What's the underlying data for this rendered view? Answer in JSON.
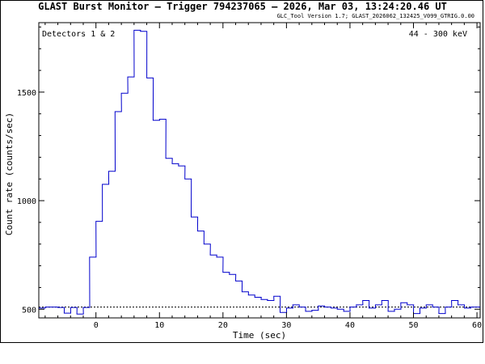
{
  "chart_data": {
    "type": "line",
    "title": "GLAST Burst Monitor  –  Trigger 794237065  –  2026, Mar 03, 13:24:20.46 UT",
    "subtitle": "GLC_Tool Version 1.7; GLAST_2026062_132425_V099_GTRIG.0.00",
    "xlabel": "Time (sec)",
    "ylabel": "Count rate (counts/sec)",
    "annotation_left": "Detectors 1 & 2",
    "annotation_right": "44 - 300 keV",
    "xlim": [
      -9,
      60.5
    ],
    "ylim": [
      460,
      1820
    ],
    "xticks": [
      0,
      10,
      20,
      30,
      40,
      50,
      60
    ],
    "yticks": [
      500,
      1000,
      1500
    ],
    "background_level": 510,
    "step_width": 1.024,
    "series": [
      {
        "color": "#0000cc",
        "bin_starts": [
          -9,
          -8,
          -7,
          -6,
          -5,
          -4,
          -3,
          -2,
          -1,
          0,
          1,
          2,
          3,
          4,
          5,
          6,
          7,
          8,
          9,
          10,
          11,
          12,
          13,
          14,
          15,
          16,
          17,
          18,
          19,
          20,
          21,
          22,
          23,
          24,
          25,
          26,
          27,
          28,
          29,
          30,
          31,
          32,
          33,
          34,
          35,
          36,
          37,
          38,
          39,
          40,
          41,
          42,
          43,
          44,
          45,
          46,
          47,
          48,
          49,
          50,
          51,
          52,
          53,
          54,
          55,
          56,
          57,
          58,
          59,
          60
        ],
        "values": [
          505,
          510,
          510,
          508,
          482,
          508,
          478,
          508,
          740,
          905,
          1075,
          1135,
          1410,
          1495,
          1570,
          1785,
          1780,
          1565,
          1370,
          1375,
          1195,
          1170,
          1160,
          1100,
          925,
          860,
          800,
          750,
          740,
          670,
          660,
          630,
          580,
          565,
          555,
          545,
          540,
          560,
          485,
          505,
          520,
          510,
          490,
          495,
          515,
          510,
          505,
          500,
          490,
          510,
          520,
          540,
          505,
          520,
          540,
          490,
          500,
          530,
          520,
          480,
          505,
          520,
          510,
          480,
          510,
          540,
          520,
          505,
          510,
          510
        ]
      }
    ]
  }
}
